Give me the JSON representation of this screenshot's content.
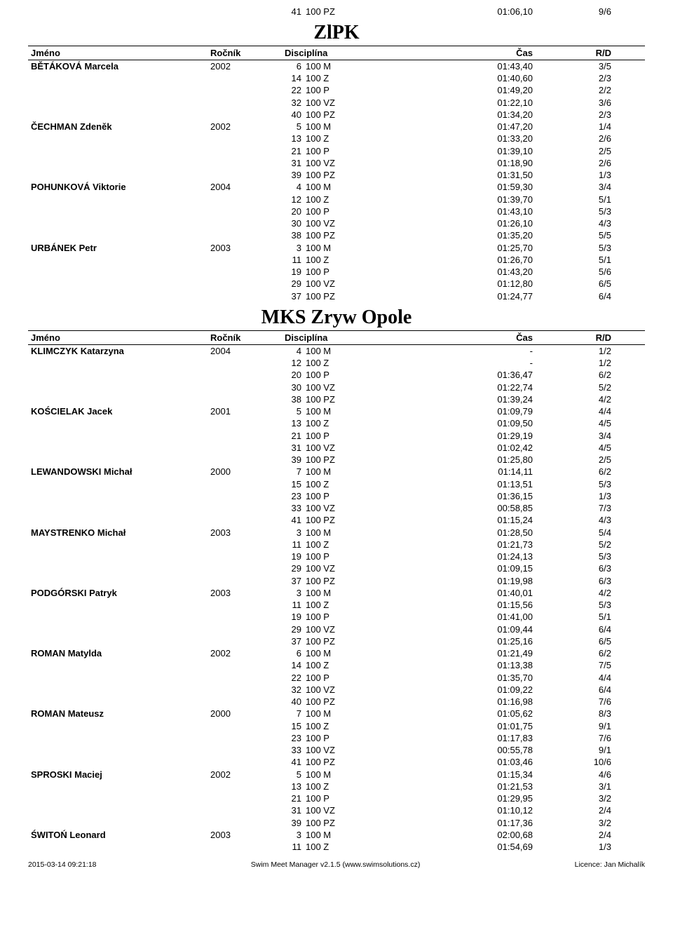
{
  "orphan_row": {
    "num": "41",
    "disc": "100 PZ",
    "time": "01:06,10",
    "rd": "9/6"
  },
  "clubs": [
    {
      "title": "ZlPK",
      "header": {
        "name": "Jméno",
        "year": "Ročník",
        "disc": "Disciplína",
        "time": "Čas",
        "rd": "R/D"
      },
      "swimmers": [
        {
          "name": "BĚTÁKOVÁ Marcela",
          "year": "2002",
          "results": [
            {
              "num": "6",
              "disc": "100 M",
              "time": "01:43,40",
              "rd": "3/5"
            },
            {
              "num": "14",
              "disc": "100 Z",
              "time": "01:40,60",
              "rd": "2/3"
            },
            {
              "num": "22",
              "disc": "100 P",
              "time": "01:49,20",
              "rd": "2/2"
            },
            {
              "num": "32",
              "disc": "100 VZ",
              "time": "01:22,10",
              "rd": "3/6"
            },
            {
              "num": "40",
              "disc": "100 PZ",
              "time": "01:34,20",
              "rd": "2/3"
            }
          ]
        },
        {
          "name": "ČECHMAN Zdeněk",
          "year": "2002",
          "results": [
            {
              "num": "5",
              "disc": "100 M",
              "time": "01:47,20",
              "rd": "1/4"
            },
            {
              "num": "13",
              "disc": "100 Z",
              "time": "01:33,20",
              "rd": "2/6"
            },
            {
              "num": "21",
              "disc": "100 P",
              "time": "01:39,10",
              "rd": "2/5"
            },
            {
              "num": "31",
              "disc": "100 VZ",
              "time": "01:18,90",
              "rd": "2/6"
            },
            {
              "num": "39",
              "disc": "100 PZ",
              "time": "01:31,50",
              "rd": "1/3"
            }
          ]
        },
        {
          "name": "POHUNKOVÁ Viktorie",
          "year": "2004",
          "results": [
            {
              "num": "4",
              "disc": "100 M",
              "time": "01:59,30",
              "rd": "3/4"
            },
            {
              "num": "12",
              "disc": "100 Z",
              "time": "01:39,70",
              "rd": "5/1"
            },
            {
              "num": "20",
              "disc": "100 P",
              "time": "01:43,10",
              "rd": "5/3"
            },
            {
              "num": "30",
              "disc": "100 VZ",
              "time": "01:26,10",
              "rd": "4/3"
            },
            {
              "num": "38",
              "disc": "100 PZ",
              "time": "01:35,20",
              "rd": "5/5"
            }
          ]
        },
        {
          "name": "URBÁNEK Petr",
          "year": "2003",
          "results": [
            {
              "num": "3",
              "disc": "100 M",
              "time": "01:25,70",
              "rd": "5/3"
            },
            {
              "num": "11",
              "disc": "100 Z",
              "time": "01:26,70",
              "rd": "5/1"
            },
            {
              "num": "19",
              "disc": "100 P",
              "time": "01:43,20",
              "rd": "5/6"
            },
            {
              "num": "29",
              "disc": "100 VZ",
              "time": "01:12,80",
              "rd": "6/5"
            },
            {
              "num": "37",
              "disc": "100 PZ",
              "time": "01:24,77",
              "rd": "6/4"
            }
          ]
        }
      ]
    },
    {
      "title": "MKS Zryw Opole",
      "header": {
        "name": "Jméno",
        "year": "Ročník",
        "disc": "Disciplína",
        "time": "Čas",
        "rd": "R/D"
      },
      "swimmers": [
        {
          "name": "KLIMCZYK Katarzyna",
          "year": "2004",
          "results": [
            {
              "num": "4",
              "disc": "100 M",
              "time": "-",
              "rd": "1/2"
            },
            {
              "num": "12",
              "disc": "100 Z",
              "time": "-",
              "rd": "1/2"
            },
            {
              "num": "20",
              "disc": "100 P",
              "time": "01:36,47",
              "rd": "6/2"
            },
            {
              "num": "30",
              "disc": "100 VZ",
              "time": "01:22,74",
              "rd": "5/2"
            },
            {
              "num": "38",
              "disc": "100 PZ",
              "time": "01:39,24",
              "rd": "4/2"
            }
          ]
        },
        {
          "name": "KOŚCIELAK Jacek",
          "year": "2001",
          "results": [
            {
              "num": "5",
              "disc": "100 M",
              "time": "01:09,79",
              "rd": "4/4"
            },
            {
              "num": "13",
              "disc": "100 Z",
              "time": "01:09,50",
              "rd": "4/5"
            },
            {
              "num": "21",
              "disc": "100 P",
              "time": "01:29,19",
              "rd": "3/4"
            },
            {
              "num": "31",
              "disc": "100 VZ",
              "time": "01:02,42",
              "rd": "4/5"
            },
            {
              "num": "39",
              "disc": "100 PZ",
              "time": "01:25,80",
              "rd": "2/5"
            }
          ]
        },
        {
          "name": "LEWANDOWSKI Michał",
          "year": "2000",
          "results": [
            {
              "num": "7",
              "disc": "100 M",
              "time": "01:14,11",
              "rd": "6/2"
            },
            {
              "num": "15",
              "disc": "100 Z",
              "time": "01:13,51",
              "rd": "5/3"
            },
            {
              "num": "23",
              "disc": "100 P",
              "time": "01:36,15",
              "rd": "1/3"
            },
            {
              "num": "33",
              "disc": "100 VZ",
              "time": "00:58,85",
              "rd": "7/3"
            },
            {
              "num": "41",
              "disc": "100 PZ",
              "time": "01:15,24",
              "rd": "4/3"
            }
          ]
        },
        {
          "name": "MAYSTRENKO Michał",
          "year": "2003",
          "results": [
            {
              "num": "3",
              "disc": "100 M",
              "time": "01:28,50",
              "rd": "5/4"
            },
            {
              "num": "11",
              "disc": "100 Z",
              "time": "01:21,73",
              "rd": "5/2"
            },
            {
              "num": "19",
              "disc": "100 P",
              "time": "01:24,13",
              "rd": "5/3"
            },
            {
              "num": "29",
              "disc": "100 VZ",
              "time": "01:09,15",
              "rd": "6/3"
            },
            {
              "num": "37",
              "disc": "100 PZ",
              "time": "01:19,98",
              "rd": "6/3"
            }
          ]
        },
        {
          "name": "PODGÓRSKI Patryk",
          "year": "2003",
          "results": [
            {
              "num": "3",
              "disc": "100 M",
              "time": "01:40,01",
              "rd": "4/2"
            },
            {
              "num": "11",
              "disc": "100 Z",
              "time": "01:15,56",
              "rd": "5/3"
            },
            {
              "num": "19",
              "disc": "100 P",
              "time": "01:41,00",
              "rd": "5/1"
            },
            {
              "num": "29",
              "disc": "100 VZ",
              "time": "01:09,44",
              "rd": "6/4"
            },
            {
              "num": "37",
              "disc": "100 PZ",
              "time": "01:25,16",
              "rd": "6/5"
            }
          ]
        },
        {
          "name": "ROMAN Matylda",
          "year": "2002",
          "results": [
            {
              "num": "6",
              "disc": "100 M",
              "time": "01:21,49",
              "rd": "6/2"
            },
            {
              "num": "14",
              "disc": "100 Z",
              "time": "01:13,38",
              "rd": "7/5"
            },
            {
              "num": "22",
              "disc": "100 P",
              "time": "01:35,70",
              "rd": "4/4"
            },
            {
              "num": "32",
              "disc": "100 VZ",
              "time": "01:09,22",
              "rd": "6/4"
            },
            {
              "num": "40",
              "disc": "100 PZ",
              "time": "01:16,98",
              "rd": "7/6"
            }
          ]
        },
        {
          "name": "ROMAN Mateusz",
          "year": "2000",
          "results": [
            {
              "num": "7",
              "disc": "100 M",
              "time": "01:05,62",
              "rd": "8/3"
            },
            {
              "num": "15",
              "disc": "100 Z",
              "time": "01:01,75",
              "rd": "9/1"
            },
            {
              "num": "23",
              "disc": "100 P",
              "time": "01:17,83",
              "rd": "7/6"
            },
            {
              "num": "33",
              "disc": "100 VZ",
              "time": "00:55,78",
              "rd": "9/1"
            },
            {
              "num": "41",
              "disc": "100 PZ",
              "time": "01:03,46",
              "rd": "10/6"
            }
          ]
        },
        {
          "name": "SPROSKI Maciej",
          "year": "2002",
          "results": [
            {
              "num": "5",
              "disc": "100 M",
              "time": "01:15,34",
              "rd": "4/6"
            },
            {
              "num": "13",
              "disc": "100 Z",
              "time": "01:21,53",
              "rd": "3/1"
            },
            {
              "num": "21",
              "disc": "100 P",
              "time": "01:29,95",
              "rd": "3/2"
            },
            {
              "num": "31",
              "disc": "100 VZ",
              "time": "01:10,12",
              "rd": "2/4"
            },
            {
              "num": "39",
              "disc": "100 PZ",
              "time": "01:17,36",
              "rd": "3/2"
            }
          ]
        },
        {
          "name": "ŚWITOŃ Leonard",
          "year": "2003",
          "results": [
            {
              "num": "3",
              "disc": "100 M",
              "time": "02:00,68",
              "rd": "2/4"
            },
            {
              "num": "11",
              "disc": "100 Z",
              "time": "01:54,69",
              "rd": "1/3"
            }
          ]
        }
      ]
    }
  ],
  "footer": {
    "left": "2015-03-14 09:21:18",
    "center": "Swim Meet Manager v2.1.5 (www.swimsolutions.cz)",
    "right": "Licence: Jan Michalík"
  }
}
